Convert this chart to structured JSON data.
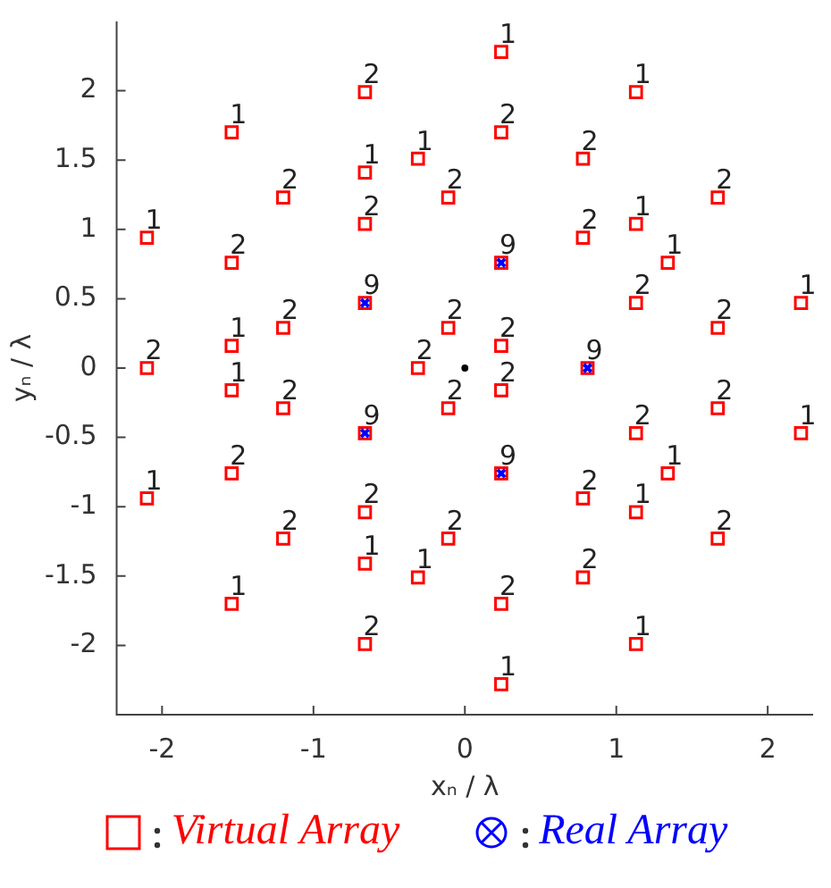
{
  "chart_data": {
    "type": "scatter",
    "xlabel": "xₙ / λ",
    "ylabel": "yₙ / λ",
    "xlim": [
      -2.3,
      2.3
    ],
    "ylim": [
      -2.5,
      2.5
    ],
    "xticks": [
      -2,
      -1,
      0,
      1,
      2
    ],
    "yticks": [
      -2,
      -1.5,
      -1,
      -0.5,
      0,
      0.5,
      1,
      1.5,
      2
    ],
    "legend": "bottom",
    "series": [
      {
        "name": "Virtual Array",
        "color": "#ff0000",
        "marker": "square",
        "x": [
          0.24,
          -0.66,
          1.13,
          -1.54,
          -0.66,
          -0.31,
          0.24,
          0.78,
          -1.2,
          -0.11,
          1.67,
          1.13,
          -2.1,
          -0.66,
          1.34,
          0.78,
          -1.54,
          -1.2,
          -0.11,
          -1.54,
          0.24,
          1.13,
          1.67,
          2.22,
          -0.66,
          0.24,
          -2.1,
          -0.31,
          0.81,
          0.24,
          -0.66,
          1.13,
          -1.54,
          -0.66,
          -0.31,
          0.24,
          0.78,
          -1.2,
          -0.11,
          1.67,
          1.13,
          -2.1,
          -0.66,
          1.34,
          0.78,
          -1.54,
          -1.2,
          -0.11,
          -1.54,
          0.24,
          1.13,
          1.67,
          2.22,
          -0.66,
          0.24
        ],
        "values": [
          2.28,
          1.99,
          1.99,
          1.7,
          1.41,
          1.51,
          1.7,
          1.51,
          1.23,
          1.23,
          1.23,
          1.04,
          0.94,
          1.04,
          0.76,
          0.94,
          0.76,
          0.29,
          0.29,
          0.16,
          0.16,
          0.47,
          0.29,
          0.47,
          0.47,
          0.76,
          0,
          0,
          0,
          -2.28,
          -1.99,
          -1.99,
          -1.7,
          -1.41,
          -1.51,
          -1.7,
          -1.51,
          -1.23,
          -1.23,
          -1.23,
          -1.04,
          -0.94,
          -1.04,
          -0.76,
          -0.94,
          -0.76,
          -0.29,
          -0.29,
          -0.16,
          -0.16,
          -0.47,
          -0.29,
          -0.47,
          -0.47,
          -0.76
        ]
      },
      {
        "name": "Real Array",
        "color": "#0000ff",
        "marker": "cross",
        "x": [
          -0.66,
          0.24,
          0.81,
          -0.66,
          0.24
        ],
        "values": [
          0.47,
          0.76,
          0,
          -0.47,
          -0.76
        ]
      },
      {
        "color": "#000000",
        "marker": "circle",
        "x": [
          0
        ],
        "values": [
          0
        ]
      }
    ],
    "annotations": [
      {
        "text": "1",
        "x": 0.24,
        "y": 2.28
      },
      {
        "text": "2",
        "x": -0.66,
        "y": 1.99
      },
      {
        "text": "1",
        "x": 1.13,
        "y": 1.99
      },
      {
        "text": "1",
        "x": -1.54,
        "y": 1.7
      },
      {
        "text": "1",
        "x": -0.66,
        "y": 1.41
      },
      {
        "text": "1",
        "x": -0.31,
        "y": 1.51
      },
      {
        "text": "2",
        "x": 0.24,
        "y": 1.7
      },
      {
        "text": "2",
        "x": 0.78,
        "y": 1.51
      },
      {
        "text": "2",
        "x": -1.2,
        "y": 1.23
      },
      {
        "text": "2",
        "x": -0.11,
        "y": 1.23
      },
      {
        "text": "2",
        "x": 1.67,
        "y": 1.23
      },
      {
        "text": "1",
        "x": 1.13,
        "y": 1.04
      },
      {
        "text": "1",
        "x": -2.1,
        "y": 0.94
      },
      {
        "text": "2",
        "x": -0.66,
        "y": 1.04
      },
      {
        "text": "1",
        "x": 1.34,
        "y": 0.76
      },
      {
        "text": "2",
        "x": 0.78,
        "y": 0.94
      },
      {
        "text": "2",
        "x": -1.54,
        "y": 0.76
      },
      {
        "text": "2",
        "x": -1.2,
        "y": 0.29
      },
      {
        "text": "2",
        "x": -0.11,
        "y": 0.29
      },
      {
        "text": "1",
        "x": -1.54,
        "y": 0.16
      },
      {
        "text": "2",
        "x": 0.24,
        "y": 0.16
      },
      {
        "text": "2",
        "x": 1.13,
        "y": 0.47
      },
      {
        "text": "2",
        "x": 1.67,
        "y": 0.29
      },
      {
        "text": "1",
        "x": 2.22,
        "y": 0.47
      },
      {
        "text": "9",
        "x": -0.66,
        "y": 0.47
      },
      {
        "text": "9",
        "x": 0.24,
        "y": 0.76
      },
      {
        "text": "2",
        "x": -2.1,
        "y": 0
      },
      {
        "text": "2",
        "x": -0.31,
        "y": 0
      },
      {
        "text": "9",
        "x": 0.81,
        "y": 0
      },
      {
        "text": "1",
        "x": 0.24,
        "y": -2.28
      },
      {
        "text": "2",
        "x": -0.66,
        "y": -1.99
      },
      {
        "text": "1",
        "x": 1.13,
        "y": -1.99
      },
      {
        "text": "1",
        "x": -1.54,
        "y": -1.7
      },
      {
        "text": "1",
        "x": -0.66,
        "y": -1.41
      },
      {
        "text": "1",
        "x": -0.31,
        "y": -1.51
      },
      {
        "text": "2",
        "x": 0.24,
        "y": -1.7
      },
      {
        "text": "2",
        "x": 0.78,
        "y": -1.51
      },
      {
        "text": "2",
        "x": -1.2,
        "y": -1.23
      },
      {
        "text": "2",
        "x": -0.11,
        "y": -1.23
      },
      {
        "text": "2",
        "x": 1.67,
        "y": -1.23
      },
      {
        "text": "1",
        "x": 1.13,
        "y": -1.04
      },
      {
        "text": "1",
        "x": -2.1,
        "y": -0.94
      },
      {
        "text": "2",
        "x": -0.66,
        "y": -1.04
      },
      {
        "text": "1",
        "x": 1.34,
        "y": -0.76
      },
      {
        "text": "2",
        "x": 0.78,
        "y": -0.94
      },
      {
        "text": "2",
        "x": -1.54,
        "y": -0.76
      },
      {
        "text": "2",
        "x": -1.2,
        "y": -0.29
      },
      {
        "text": "2",
        "x": -0.11,
        "y": -0.29
      },
      {
        "text": "1",
        "x": -1.54,
        "y": -0.16
      },
      {
        "text": "2",
        "x": 0.24,
        "y": -0.16
      },
      {
        "text": "2",
        "x": 1.13,
        "y": -0.47
      },
      {
        "text": "2",
        "x": 1.67,
        "y": -0.29
      },
      {
        "text": "1",
        "x": 2.22,
        "y": -0.47
      },
      {
        "text": "9",
        "x": -0.66,
        "y": -0.47
      },
      {
        "text": "9",
        "x": 0.24,
        "y": -0.76
      }
    ]
  }
}
